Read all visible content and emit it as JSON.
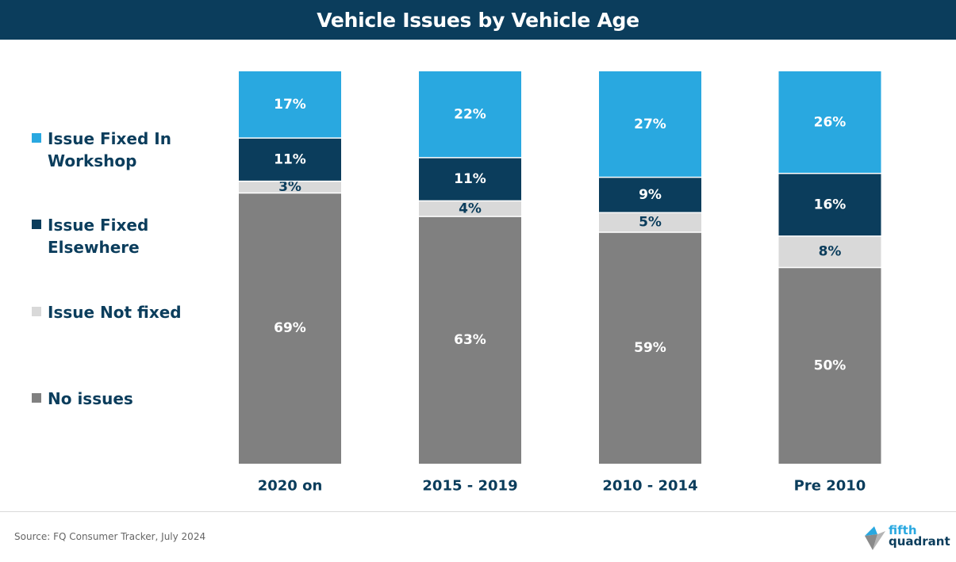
{
  "chart_data": {
    "type": "bar",
    "stacked": true,
    "percent": true,
    "title": "Vehicle Issues by Vehicle Age",
    "categories": [
      "2020 on",
      "2015 - 2019",
      "2010 - 2014",
      "Pre 2010"
    ],
    "series": [
      {
        "name": "No issues",
        "values": [
          69,
          63,
          59,
          50
        ],
        "color": "#808080",
        "label_color": "#ffffff",
        "value_labels": [
          "69%",
          "63%",
          "59%",
          "50%"
        ]
      },
      {
        "name": "Issue Not fixed",
        "values": [
          3,
          4,
          5,
          8
        ],
        "color": "#d9d9d9",
        "label_color": "#0b3d5c",
        "value_labels": [
          "3%",
          "4%",
          "5%",
          "8%"
        ]
      },
      {
        "name": "Issue Fixed Elsewhere",
        "values": [
          11,
          11,
          9,
          16
        ],
        "color": "#0b3d5c",
        "label_color": "#ffffff",
        "value_labels": [
          "11%",
          "11%",
          "9%",
          "16%"
        ]
      },
      {
        "name": "Issue Fixed In Workshop",
        "values": [
          17,
          22,
          27,
          26
        ],
        "color": "#29a8e0",
        "label_color": "#ffffff",
        "value_labels": [
          "17%",
          "22%",
          "27%",
          "26%"
        ]
      }
    ],
    "legend": [
      {
        "label": "Issue Fixed In Workshop",
        "color": "#29a8e0"
      },
      {
        "label": "Issue Fixed Elsewhere",
        "color": "#0b3d5c"
      },
      {
        "label": "Issue Not fixed",
        "color": "#d9d9d9"
      },
      {
        "label": "No issues",
        "color": "#808080"
      }
    ],
    "legend_position": "left",
    "ylim": [
      0,
      100
    ],
    "grid": false
  },
  "footer": {
    "source": "Source: FQ Consumer Tracker, July 2024"
  },
  "logo": {
    "line1": "fifth",
    "line2": "quadrant"
  }
}
